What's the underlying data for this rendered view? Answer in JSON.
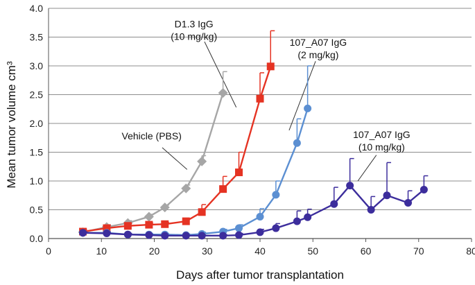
{
  "chart_data": {
    "type": "line",
    "title": "",
    "xlabel": "Days after tumor transplantation",
    "ylabel": "Mean tumor volume cm³",
    "xlim": [
      0,
      80
    ],
    "ylim": [
      0,
      4.0
    ],
    "x_ticks": [
      "0",
      "10",
      "20",
      "30",
      "40",
      "50",
      "60",
      "70",
      "80"
    ],
    "y_ticks": [
      "0.0",
      "0.5",
      "1.0",
      "1.5",
      "2.0",
      "2.5",
      "3.0",
      "3.5",
      "4.0"
    ],
    "grid": "horizontal",
    "legend": "none",
    "series": [
      {
        "key": "vehicle",
        "color": "#a6a6a6",
        "marker": "diamond",
        "x": [
          6.5,
          11,
          15,
          19,
          22,
          26,
          29,
          33
        ],
        "y": [
          0.11,
          0.2,
          0.27,
          0.38,
          0.54,
          0.87,
          1.34,
          2.53
        ],
        "err": [
          0.02,
          0.04,
          0.04,
          0.04,
          0.04,
          0.06,
          0.1,
          0.37
        ]
      },
      {
        "key": "d13",
        "color": "#e53323",
        "marker": "square",
        "x": [
          6.5,
          11,
          15,
          19,
          22,
          26,
          29,
          33,
          36,
          40,
          42
        ],
        "y": [
          0.12,
          0.18,
          0.22,
          0.24,
          0.25,
          0.3,
          0.46,
          0.86,
          1.15,
          2.43,
          2.99
        ],
        "err": [
          0.04,
          0.05,
          0.04,
          0.03,
          0.03,
          0.05,
          0.13,
          0.22,
          0.35,
          0.45,
          0.62
        ]
      },
      {
        "key": "a07_2",
        "color": "#5b8fd2",
        "marker": "circle",
        "x": [
          6.5,
          11,
          15,
          19,
          22,
          26,
          29,
          33,
          36,
          40,
          43,
          47,
          49
        ],
        "y": [
          0.1,
          0.1,
          0.07,
          0.07,
          0.07,
          0.06,
          0.08,
          0.12,
          0.18,
          0.38,
          0.76,
          1.66,
          2.26
        ],
        "err": [
          0.02,
          0.02,
          0.02,
          0.02,
          0.02,
          0.02,
          0.03,
          0.04,
          0.06,
          0.14,
          0.24,
          0.42,
          0.74
        ]
      },
      {
        "key": "a07_10",
        "color": "#3c2d9c",
        "marker": "circle",
        "x": [
          6.5,
          11,
          15,
          19,
          22,
          26,
          29,
          33,
          36,
          40,
          43,
          47,
          49,
          54,
          57,
          61,
          64,
          68,
          71
        ],
        "y": [
          0.1,
          0.09,
          0.07,
          0.06,
          0.05,
          0.05,
          0.05,
          0.05,
          0.06,
          0.11,
          0.18,
          0.3,
          0.37,
          0.6,
          0.92,
          0.5,
          0.75,
          0.62,
          0.85
        ],
        "err": [
          0.02,
          0.02,
          0.02,
          0.01,
          0.01,
          0.01,
          0.01,
          0.02,
          0.03,
          0.05,
          0.08,
          0.18,
          0.14,
          0.29,
          0.47,
          0.23,
          0.57,
          0.21,
          0.24
        ]
      }
    ],
    "annotations": [
      {
        "key": "d13",
        "lines": [
          "D1.3 IgG",
          "(10 mg/kg)"
        ],
        "at": [
          27.5,
          3.67
        ],
        "arrow_from": [
          29.5,
          3.42
        ],
        "arrow_to": [
          35.5,
          2.28
        ]
      },
      {
        "key": "a07_2",
        "lines": [
          "107_A07 IgG",
          "(2 mg/kg)"
        ],
        "at": [
          51,
          3.35
        ],
        "arrow_from": [
          50.5,
          3.08
        ],
        "arrow_to": [
          45.5,
          1.88
        ]
      },
      {
        "key": "vehicle",
        "lines": [
          "Vehicle (PBS)"
        ],
        "at": [
          19.5,
          1.72
        ],
        "arrow_from": [
          21.5,
          1.58
        ],
        "arrow_to": [
          26.2,
          1.2
        ]
      },
      {
        "key": "a07_10",
        "lines": [
          "107_A07 IgG",
          "(10 mg/kg)"
        ],
        "at": [
          63,
          1.75
        ],
        "arrow_from": [
          62,
          1.45
        ],
        "arrow_to": [
          58.5,
          1.0
        ]
      }
    ]
  }
}
